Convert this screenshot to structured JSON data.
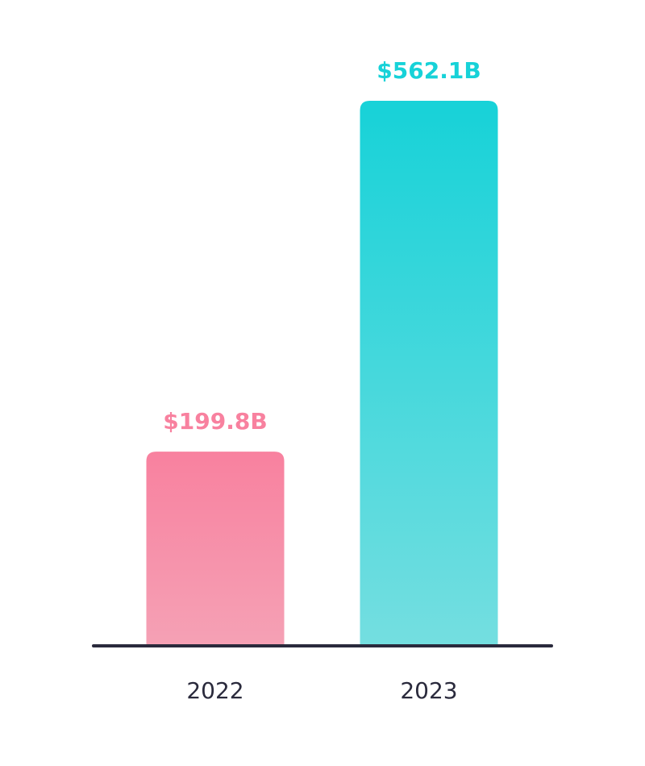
{
  "chart_data": {
    "type": "bar",
    "categories": [
      "2022",
      "2023"
    ],
    "values": [
      199.8,
      562.1
    ],
    "data_labels": [
      "$199.8B",
      "$562.1B"
    ],
    "title": "",
    "xlabel": "",
    "ylabel": "",
    "ylim": [
      0,
      562.1
    ],
    "grid": false,
    "legend": "none",
    "colors": {
      "bars": [
        {
          "top": "#f8819f",
          "bottom": "#f5a1b5"
        },
        {
          "top": "#17d2d8",
          "bottom": "#74dee0"
        }
      ],
      "labels": [
        "#f8819f",
        "#17d2d8"
      ],
      "axis": "#2a2a3c"
    }
  }
}
